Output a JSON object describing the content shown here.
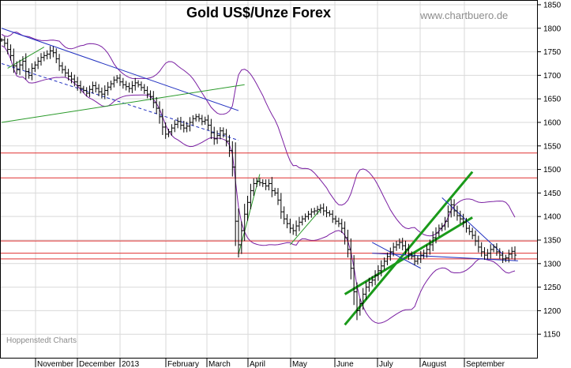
{
  "chart_data": {
    "type": "line",
    "subtype": "ohlc-bars-with-bollinger-bands",
    "title": "Gold US$/Unze Forex",
    "watermark": "www.chartbuero.de",
    "source": "Hoppenstedt Charts",
    "y_axis": {
      "position": "right",
      "ylim": [
        1100,
        1860
      ],
      "ticks": [
        1150,
        1200,
        1250,
        1300,
        1350,
        1400,
        1450,
        1500,
        1550,
        1600,
        1650,
        1700,
        1750,
        1800,
        1850
      ]
    },
    "x_axis": {
      "labels": [
        "November",
        "December",
        "2013",
        "February",
        "March",
        "April",
        "May",
        "June",
        "July",
        "August",
        "September"
      ]
    },
    "grid": true,
    "series": [
      {
        "values": [
          1775,
          1768,
          1755,
          1742,
          1720,
          1712,
          1722,
          1730,
          1708,
          1700,
          1715,
          1722,
          1730,
          1738,
          1742,
          1745,
          1752,
          1748,
          1735,
          1720,
          1712,
          1705,
          1698,
          1692,
          1686,
          1678,
          1672,
          1668,
          1662,
          1670,
          1678,
          1672,
          1665,
          1660,
          1668,
          1675,
          1682,
          1690,
          1694,
          1686,
          1680,
          1676,
          1672,
          1678,
          1684,
          1680,
          1674,
          1668,
          1660,
          1655,
          1642,
          1630,
          1612,
          1590,
          1575,
          1580,
          1588,
          1596,
          1602,
          1594,
          1588,
          1592,
          1600,
          1608,
          1612,
          1608,
          1602,
          1605,
          1594,
          1578,
          1565,
          1572,
          1582,
          1575,
          1560,
          1540,
          1505,
          1390,
          1340,
          1370,
          1405,
          1430,
          1455,
          1470,
          1475,
          1472,
          1470,
          1465,
          1470,
          1455,
          1450,
          1435,
          1410,
          1395,
          1385,
          1375,
          1370,
          1380,
          1388,
          1395,
          1400,
          1405,
          1410,
          1412,
          1415,
          1418,
          1412,
          1408,
          1405,
          1395,
          1390,
          1385,
          1375,
          1355,
          1330,
          1290,
          1240,
          1200,
          1215,
          1235,
          1250,
          1260,
          1265,
          1275,
          1285,
          1295,
          1305,
          1315,
          1325,
          1335,
          1340,
          1345,
          1338,
          1330,
          1320,
          1315,
          1305,
          1310,
          1318,
          1322,
          1330,
          1340,
          1355,
          1365,
          1375,
          1380,
          1390,
          1410,
          1425,
          1412,
          1402,
          1395,
          1388,
          1375,
          1368,
          1360,
          1348,
          1335,
          1325,
          1318,
          1322,
          1330,
          1335,
          1325,
          1318,
          1310,
          1312,
          1320,
          1326,
          1318
        ]
      }
    ],
    "horizontal_lines": [
      1535,
      1482,
      1348,
      1322,
      1310
    ],
    "trend_lines": [
      {
        "from": [
          0,
          1800
        ],
        "to": [
          78,
          1625
        ]
      },
      {
        "from": [
          0,
          1725
        ],
        "to": [
          78,
          1562
        ]
      },
      {
        "from": [
          0,
          1600
        ],
        "to": [
          80,
          1680
        ]
      },
      {
        "from": [
          2,
          1715
        ],
        "to": [
          14,
          1760
        ]
      },
      {
        "from": [
          78,
          1320
        ],
        "to": [
          85,
          1490
        ]
      },
      {
        "from": [
          95,
          1340
        ],
        "to": [
          105,
          1415
        ]
      },
      {
        "from": [
          113,
          1170
        ],
        "to": [
          155,
          1495
        ]
      },
      {
        "from": [
          113,
          1235
        ],
        "to": [
          155,
          1398
        ]
      },
      {
        "from": [
          122,
          1322
        ],
        "to": [
          170,
          1306
        ]
      },
      {
        "from": [
          122,
          1345
        ],
        "to": [
          138,
          1290
        ]
      },
      {
        "from": [
          145,
          1440
        ],
        "to": [
          165,
          1320
        ]
      }
    ]
  }
}
